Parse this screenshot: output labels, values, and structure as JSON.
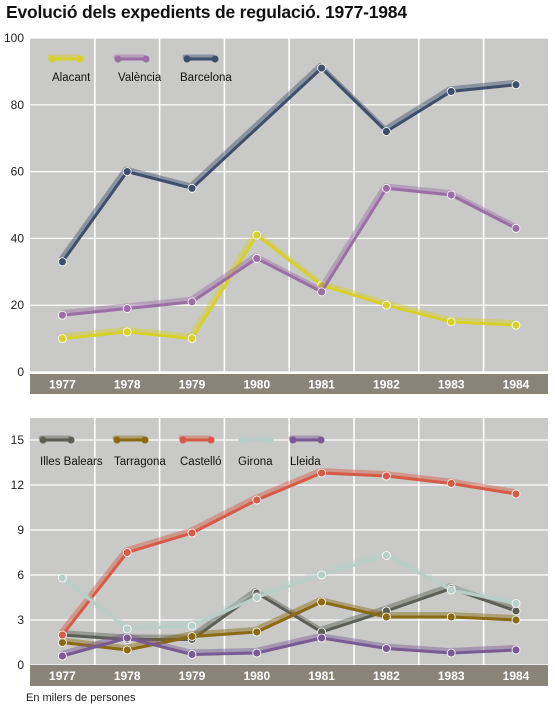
{
  "title": "Evolució dels expedients de regulació. 1977-1984",
  "footnote": "En milers de persones",
  "colors": {
    "panel": "#c9c9c7",
    "grid": "#ffffff",
    "axis_band": "#8a8478"
  },
  "chart_data": [
    {
      "type": "line",
      "categories": [
        "1977",
        "1978",
        "1979",
        "1980",
        "1981",
        "1982",
        "1983",
        "1984"
      ],
      "ylim": [
        0,
        100
      ],
      "yticks": [
        0,
        20,
        40,
        60,
        80,
        100
      ],
      "grid": true,
      "legend_position": "top-left",
      "series": [
        {
          "name": "Alacant",
          "color": "#d8d02a",
          "values": [
            10,
            12,
            10,
            41,
            26,
            20,
            15,
            14
          ]
        },
        {
          "name": "València",
          "color": "#9b6fa6",
          "values": [
            17,
            19,
            21,
            34,
            24,
            55,
            53,
            43
          ]
        },
        {
          "name": "Barcelona",
          "color": "#3e4f6e",
          "values": [
            33,
            60,
            55,
            null,
            91,
            72,
            84,
            86
          ]
        }
      ]
    },
    {
      "type": "line",
      "categories": [
        "1977",
        "1978",
        "1979",
        "1980",
        "1981",
        "1982",
        "1983",
        "1984"
      ],
      "ylim": [
        0,
        16
      ],
      "yticks": [
        0,
        3,
        6,
        9,
        12,
        15
      ],
      "grid": true,
      "legend_position": "top-left",
      "series": [
        {
          "name": "Illes Balears",
          "color": "#5c5f55",
          "values": [
            2.0,
            1.7,
            1.7,
            4.8,
            2.2,
            3.6,
            5.1,
            3.6
          ]
        },
        {
          "name": "Tarragona",
          "color": "#8a6a12",
          "values": [
            1.5,
            1.0,
            1.9,
            2.2,
            4.2,
            3.2,
            3.2,
            3.0
          ]
        },
        {
          "name": "Castelló",
          "color": "#d65a45",
          "values": [
            2.0,
            7.5,
            8.8,
            11.0,
            12.8,
            12.6,
            12.1,
            11.4
          ]
        },
        {
          "name": "Girona",
          "color": "#b8cfc9",
          "values": [
            5.8,
            2.4,
            2.6,
            4.5,
            6.0,
            7.3,
            5.0,
            4.1
          ]
        },
        {
          "name": "Lleida",
          "color": "#7a5a93",
          "values": [
            0.6,
            1.8,
            0.7,
            0.8,
            1.8,
            1.1,
            0.8,
            1.0
          ]
        }
      ]
    }
  ]
}
